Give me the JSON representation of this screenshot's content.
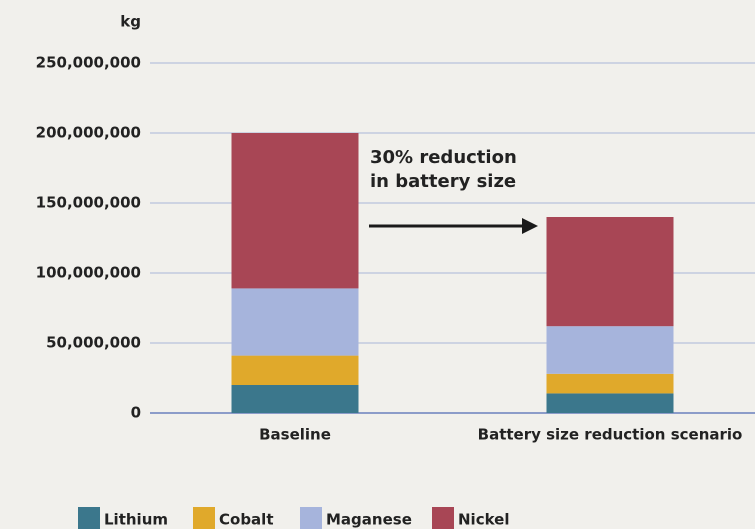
{
  "chart_data": {
    "type": "stacked_bar",
    "ylabel": "kg",
    "annotation": [
      "30% reduction",
      "in battery size"
    ],
    "categories": [
      "Baseline",
      "Battery size reduction scenario"
    ],
    "series": [
      {
        "name": "Lithium",
        "color": "#3b778c",
        "values": [
          20000000,
          14000000
        ]
      },
      {
        "name": "Cobalt",
        "color": "#e0a92b",
        "values": [
          21000000,
          14000000
        ]
      },
      {
        "name": "Maganese",
        "color": "#a6b4dc",
        "values": [
          48000000,
          34000000
        ]
      },
      {
        "name": "Nickel",
        "color": "#a84655",
        "values": [
          111000000,
          78000000
        ]
      }
    ],
    "ylim": [
      0,
      250000000
    ],
    "yticks": [
      0,
      {
        "value": 50000000,
        "label": "50,000,000"
      },
      {
        "value": 100000000,
        "label": "100,000,000"
      },
      {
        "value": 150000000,
        "label": "150,000,000"
      },
      {
        "value": 200000000,
        "label": "200,000,000"
      },
      {
        "value": 250000000,
        "label": "250,000,000"
      }
    ],
    "grid": true,
    "legend": "bottom"
  }
}
